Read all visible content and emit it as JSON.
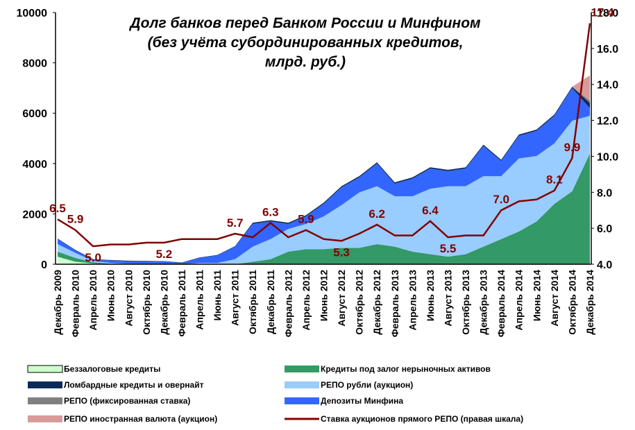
{
  "chart_data": {
    "type": "area",
    "title": [
      "Долг банков перед Банком России и Минфином",
      "(без учёта субординированных кредитов,",
      "млрд. руб.)"
    ],
    "categories": [
      "Декабрь 2009",
      "Февраль 2010",
      "Апрель 2010",
      "Июнь 2010",
      "Август 2010",
      "Октябрь 2010",
      "Декабрь 2010",
      "Февраль 2011",
      "Апрель 2011",
      "Июнь 2011",
      "Август 2011",
      "Октябрь 2011",
      "Декабрь 2011",
      "Февраль 2012",
      "Апрель 2012",
      "Июнь 2012",
      "Август 2012",
      "Октябрь 2012",
      "Декабрь 2012",
      "Февраль 2013",
      "Апрель 2013",
      "Июнь 2013",
      "Август 2013",
      "Октябрь 2013",
      "Декабрь 2013",
      "Февраль 2014",
      "Апрель 2014",
      "Июнь 2014",
      "Август 2014",
      "Октябрь 2014",
      "Декабрь 2014"
    ],
    "ylim": [
      0,
      10000
    ],
    "yticks": [
      0,
      2000,
      4000,
      6000,
      8000,
      10000
    ],
    "y2lim": [
      4,
      18
    ],
    "y2ticks": [
      {
        "value": 4,
        "label": "4.0"
      },
      {
        "value": 6,
        "label": "6.0"
      },
      {
        "value": 8,
        "label": "8.0"
      },
      {
        "value": 10,
        "label": "10.0"
      },
      {
        "value": 12,
        "label": "12.0"
      },
      {
        "value": 14,
        "label": "14.0"
      },
      {
        "value": 16,
        "label": "16.0"
      },
      {
        "value": 18,
        "label": "18.0"
      }
    ],
    "series": [
      {
        "name": "Беззалоговые кредиты",
        "color": "#ccffcc",
        "values": [
          300,
          100,
          30,
          0,
          0,
          0,
          0,
          0,
          0,
          0,
          0,
          0,
          0,
          0,
          0,
          0,
          0,
          0,
          0,
          0,
          0,
          0,
          0,
          0,
          0,
          0,
          0,
          0,
          0,
          0,
          0
        ]
      },
      {
        "name": "Кредиты под залог нерыночных активов",
        "color": "#339966",
        "values": [
          200,
          150,
          50,
          20,
          0,
          0,
          0,
          0,
          0,
          0,
          0,
          100,
          200,
          500,
          600,
          600,
          650,
          650,
          800,
          700,
          500,
          400,
          300,
          400,
          700,
          1000,
          1300,
          1700,
          2400,
          2900,
          4400
        ]
      },
      {
        "name": "РЕПО рубли (аукцион)",
        "color": "#99ccff",
        "values": [
          300,
          200,
          50,
          30,
          20,
          10,
          0,
          0,
          50,
          50,
          200,
          600,
          800,
          900,
          1000,
          1300,
          1700,
          2200,
          2300,
          2000,
          2200,
          2600,
          2800,
          2700,
          2800,
          2500,
          2900,
          2600,
          2400,
          2800,
          1500
        ]
      },
      {
        "name": "Депозиты Минфина",
        "color": "#3366ff",
        "values": [
          200,
          100,
          50,
          100,
          100,
          100,
          100,
          50,
          200,
          300,
          500,
          900,
          700,
          200,
          300,
          500,
          700,
          600,
          900,
          500,
          700,
          800,
          600,
          700,
          1200,
          600,
          900,
          1000,
          1100,
          1300,
          300
        ]
      },
      {
        "name": "Ломбардные кредиты и овернайт",
        "color": "#0a2a5a",
        "values": [
          20,
          20,
          20,
          20,
          20,
          20,
          20,
          20,
          20,
          20,
          20,
          50,
          50,
          50,
          50,
          50,
          50,
          50,
          50,
          50,
          50,
          50,
          50,
          50,
          50,
          50,
          50,
          50,
          50,
          50,
          200
        ]
      },
      {
        "name": "РЕПО (фиксированная ставка)",
        "color": "#808080",
        "values": [
          0,
          0,
          0,
          0,
          0,
          0,
          0,
          0,
          0,
          0,
          0,
          0,
          0,
          0,
          0,
          0,
          0,
          0,
          0,
          0,
          0,
          0,
          0,
          0,
          0,
          0,
          0,
          0,
          0,
          0,
          100
        ]
      },
      {
        "name": "РЕПО иностранная валюта (аукцион)",
        "color": "#d99a9a",
        "values": [
          0,
          0,
          0,
          0,
          0,
          0,
          0,
          0,
          0,
          0,
          0,
          0,
          0,
          0,
          0,
          0,
          0,
          0,
          0,
          0,
          0,
          0,
          0,
          0,
          0,
          0,
          0,
          0,
          0,
          0,
          1000
        ]
      },
      {
        "name": "Ставка аукционов прямого РЕПО (правая шкала)",
        "color": "#800000",
        "axis": "y2",
        "type": "line",
        "values": [
          6.5,
          5.9,
          5.0,
          5.1,
          5.1,
          5.2,
          5.2,
          5.4,
          5.4,
          5.4,
          5.7,
          5.5,
          6.3,
          5.5,
          5.9,
          5.4,
          5.3,
          5.7,
          6.2,
          5.6,
          5.6,
          6.4,
          5.5,
          5.6,
          5.6,
          7.0,
          7.5,
          7.6,
          8.1,
          9.9,
          17.4
        ],
        "value_labels": [
          "6.5",
          "5.9",
          "5.0",
          null,
          null,
          null,
          "5.2",
          null,
          null,
          null,
          "5.7",
          null,
          "6.3",
          null,
          "5.9",
          null,
          "5.3",
          null,
          "6.2",
          null,
          null,
          "6.4",
          "5.5",
          null,
          null,
          "7.0",
          null,
          null,
          "8.1",
          "9.9",
          "17.4"
        ]
      }
    ]
  }
}
